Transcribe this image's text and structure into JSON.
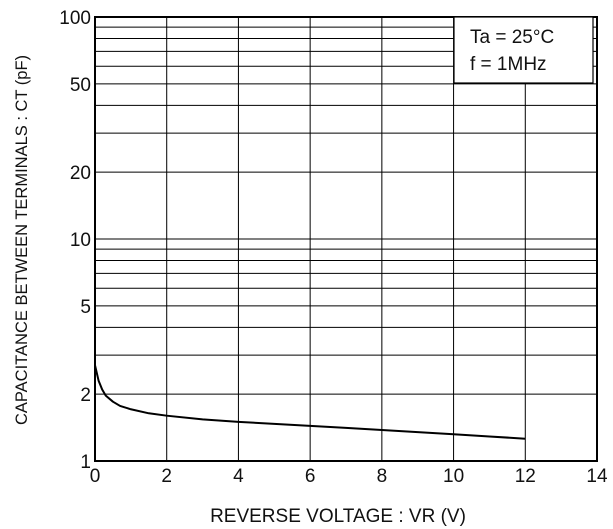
{
  "chart_data": {
    "type": "line",
    "xlabel": "REVERSE VOLTAGE : VR (V)",
    "ylabel": "CAPACITANCE BETWEEN TERMINALS : CT (pF)",
    "xlim": [
      0,
      14
    ],
    "ylim": [
      1,
      100
    ],
    "yscale": "log",
    "grid": true,
    "x_ticks": [
      "0",
      "2",
      "4",
      "6",
      "8",
      "10",
      "12",
      "14"
    ],
    "y_ticks": [
      "1",
      "2",
      "5",
      "10",
      "20",
      "50",
      "100"
    ],
    "annotations": [
      "Ta = 25°C",
      "f = 1MHz"
    ],
    "series": [
      {
        "x": [
          0,
          0.1,
          0.2,
          0.3,
          0.5,
          0.7,
          1,
          1.5,
          2,
          3,
          4,
          5,
          6,
          7,
          8,
          9,
          10,
          11,
          12
        ],
        "y": [
          2.7,
          2.3,
          2.1,
          1.97,
          1.85,
          1.77,
          1.71,
          1.64,
          1.6,
          1.54,
          1.5,
          1.47,
          1.44,
          1.41,
          1.38,
          1.35,
          1.32,
          1.29,
          1.26
        ],
        "color": "#000000"
      }
    ]
  }
}
